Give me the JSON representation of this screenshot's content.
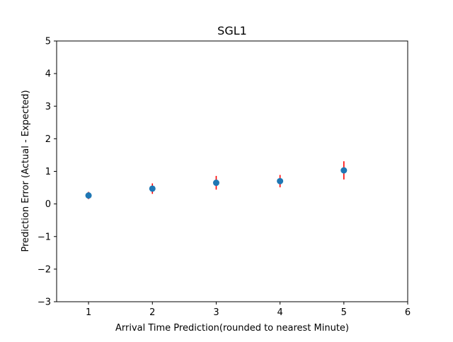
{
  "chart_data": {
    "type": "scatter",
    "title": "SGL1",
    "xlabel": "Arrival Time Prediction(rounded to nearest Minute)",
    "ylabel": "Prediction Error (Actual - Expected)",
    "xlim": [
      0.5,
      6
    ],
    "ylim": [
      -3,
      5
    ],
    "xticks": [
      1,
      2,
      3,
      4,
      5,
      6
    ],
    "yticks": [
      -3,
      -2,
      -1,
      0,
      1,
      2,
      3,
      4,
      5
    ],
    "xtick_labels": [
      "1",
      "2",
      "3",
      "4",
      "5",
      "6"
    ],
    "ytick_labels": [
      "−3",
      "−2",
      "−1",
      "0",
      "1",
      "2",
      "3",
      "4",
      "5"
    ],
    "grid": false,
    "series": [
      {
        "x": [
          1,
          2,
          3,
          4,
          5
        ],
        "y": [
          0.26,
          0.47,
          0.65,
          0.7,
          1.03
        ],
        "yerr": [
          0.11,
          0.16,
          0.21,
          0.19,
          0.28
        ],
        "marker_color": "#1f77b4",
        "errorbar_color": "#ff0000"
      }
    ]
  }
}
